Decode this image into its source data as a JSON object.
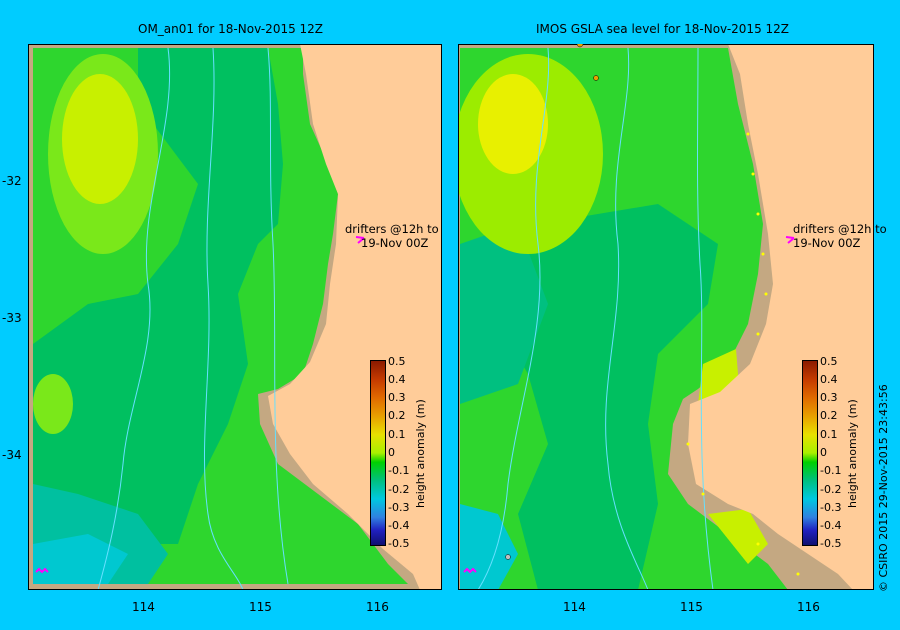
{
  "left_panel": {
    "title": "OM_an01  for 18-Nov-2015 12Z",
    "lat_ticks": [
      "-32",
      "-33",
      "-34"
    ],
    "lon_ticks": [
      "114",
      "115",
      "116"
    ],
    "drifter_note_1": "drifters @12h to",
    "drifter_note_2": "19-Nov 00Z"
  },
  "right_panel": {
    "title": "IMOS GSLA sea level  for 18-Nov-2015 12Z",
    "lon_ticks": [
      "114",
      "115",
      "116"
    ],
    "drifter_note_1": "drifters @12h to",
    "drifter_note_2": "19-Nov 00Z"
  },
  "colorbar": {
    "label": "height anomaly (m)",
    "ticks": [
      "0.5",
      "0.4",
      "0.3",
      "0.2",
      "0.1",
      "0",
      "-0.1",
      "-0.2",
      "-0.3",
      "-0.4",
      "-0.5"
    ],
    "colors": [
      "#8b1a00",
      "#c43a00",
      "#e06a00",
      "#e8a000",
      "#e8e000",
      "#a8f000",
      "#00d000",
      "#00c080",
      "#00c8e0",
      "#3080e0",
      "#2020c0",
      "#101070"
    ]
  },
  "legend_colors": {
    "land": "#ffcc99",
    "shelf": "#c4a882",
    "border": "#00ccff",
    "drifter_marker": "#ff00ff",
    "drifter_points": "#ffff00"
  },
  "credit": "© CSIRO 2015   29-Nov-2015 23:43:56"
}
